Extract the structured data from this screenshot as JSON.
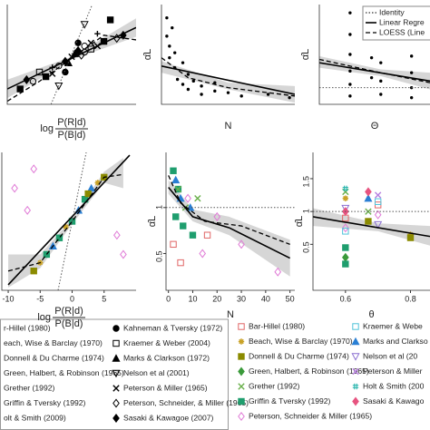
{
  "chart_data": [
    {
      "type": "scatter",
      "xlabel": {
        "prefix": "log",
        "numerator": "P(R|d)",
        "denominator": "P(B|d)"
      },
      "xlim": [
        -10,
        10
      ],
      "ylim": [
        -3,
        3.5
      ],
      "series": [
        {
          "name": "r-Hillel (1980)",
          "color": "#000000",
          "marker": "circle-open",
          "x": [
            -6,
            2
          ],
          "values": [
            -1.5,
            0.8
          ]
        },
        {
          "name": "each, Wise & Barclay (1970)",
          "color": "#000000",
          "marker": "plus",
          "x": [
            -3,
            4
          ],
          "values": [
            -0.6,
            1.6
          ]
        },
        {
          "name": "Donnell & Du Charme (1974)",
          "color": "#000000",
          "marker": "diamond",
          "x": [
            -1,
            1
          ],
          "values": [
            -0.2,
            0.5
          ]
        },
        {
          "name": "Green, Halbert, & Robinson (1965)",
          "color": "#000000",
          "marker": "square",
          "x": [
            -8,
            6
          ],
          "values": [
            -2,
            2.5
          ]
        },
        {
          "name": "Grether (1992)",
          "color": "#000000",
          "marker": "x",
          "x": [
            0,
            3
          ],
          "values": [
            0.1,
            1
          ]
        },
        {
          "name": "Griffin & Tversky (1992)",
          "color": "#000000",
          "marker": "square",
          "x": [
            -4,
            5
          ],
          "values": [
            -1.2,
            1.1
          ]
        },
        {
          "name": "olt & Smith (2009)",
          "color": "#000000",
          "marker": "circle-open",
          "x": [
            -2,
            2
          ],
          "values": [
            -0.5,
            0.4
          ]
        },
        {
          "name": "Kahneman & Tversky (1972)",
          "color": "#000000",
          "marker": "circle",
          "x": [
            1,
            -1
          ],
          "values": [
            1,
            -0.9
          ]
        },
        {
          "name": "Kraemer & Weber (2004)",
          "color": "#000000",
          "marker": "square-open",
          "x": [
            -5,
            3
          ],
          "values": [
            -0.9,
            0.6
          ]
        },
        {
          "name": "Marks & Clarkson (1972)",
          "color": "#000000",
          "marker": "triangle",
          "x": [
            0.5,
            -0.5
          ],
          "values": [
            0.3,
            -0.3
          ]
        },
        {
          "name": "Nelson et al (2001)",
          "color": "#000000",
          "marker": "triangle-down-open",
          "x": [
            2,
            -2
          ],
          "values": [
            2.2,
            -1.8
          ]
        },
        {
          "name": "Peterson & Miller (1965)",
          "color": "#000000",
          "marker": "x",
          "x": [
            -3,
            4
          ],
          "values": [
            -1,
            0.8
          ]
        },
        {
          "name": "Peterson, Schneider, & Miller (1965)",
          "color": "#000000",
          "marker": "diamond-open",
          "x": [
            1.5,
            7
          ],
          "values": [
            0.2,
            1.3
          ]
        },
        {
          "name": "Sasaki & Kawagoe (2007)",
          "color": "#000000",
          "marker": "diamond",
          "x": [
            -7,
            8
          ],
          "values": [
            -1.4,
            1.5
          ]
        }
      ],
      "band": {
        "x": [
          -10,
          0,
          10
        ],
        "lower": [
          -2.6,
          -0.1,
          1.4
        ],
        "upper": [
          -1.4,
          0.1,
          2.6
        ]
      },
      "lines": [
        {
          "style": "dotted",
          "x": [
            -3.2,
            3.2
          ],
          "values": [
            -3,
            3.5
          ]
        },
        {
          "style": "solid",
          "x": [
            -10,
            10
          ],
          "values": [
            -2,
            2
          ]
        },
        {
          "style": "dashed",
          "x": [
            -10,
            -5,
            0,
            5,
            10
          ],
          "values": [
            -2.8,
            -1.5,
            0,
            1.5,
            1.2
          ]
        }
      ]
    },
    {
      "type": "scatter",
      "xlabel": "N",
      "ylabel": "α̂L",
      "xlim": [
        0,
        50
      ],
      "ylim": [
        0,
        6
      ],
      "series": [
        {
          "color": "#000000",
          "marker": "dot",
          "x": [
            2,
            2,
            3,
            3,
            4,
            5,
            5,
            6,
            8,
            8,
            10,
            10,
            12,
            15,
            15,
            20,
            20,
            25,
            30,
            40,
            48
          ],
          "values": [
            5.2,
            4.1,
            3.5,
            2.8,
            4.6,
            2.2,
            3.1,
            1.5,
            2.5,
            1.2,
            1.8,
            0.9,
            1.4,
            1.1,
            0.6,
            0.8,
            1.3,
            0.7,
            0.5,
            0.6,
            0.4
          ]
        }
      ],
      "band": {
        "x": [
          0,
          25,
          50
        ],
        "lower": [
          1.9,
          0.9,
          0.1
        ],
        "upper": [
          2.6,
          1.3,
          1.1
        ]
      },
      "lines": [
        {
          "style": "solid",
          "x": [
            0,
            50
          ],
          "values": [
            2.3,
            0.6
          ]
        },
        {
          "style": "dashed",
          "x": [
            0,
            10,
            25,
            50
          ],
          "values": [
            2.8,
            1.6,
            1,
            0.5
          ]
        }
      ]
    },
    {
      "type": "scatter",
      "xlabel": "Θ",
      "ylabel": "α̂L",
      "xlim": [
        0.5,
        0.86
      ],
      "ylim": [
        0,
        6
      ],
      "series": [
        {
          "color": "#000000",
          "marker": "dot",
          "x": [
            0.6,
            0.6,
            0.6,
            0.6,
            0.6,
            0.6,
            0.67,
            0.67,
            0.7,
            0.7,
            0.7,
            0.7,
            0.8,
            0.8,
            0.8,
            0.8
          ],
          "values": [
            5.5,
            4.2,
            3,
            2,
            1.2,
            0.5,
            2.8,
            1.6,
            4,
            2.5,
            1.4,
            0.6,
            2.9,
            1.9,
            1,
            0.4
          ]
        }
      ],
      "band": {
        "x": [
          0.5,
          0.7,
          0.86
        ],
        "lower": [
          2.2,
          1.7,
          0.9
        ],
        "upper": [
          2.9,
          2.1,
          1.9
        ]
      },
      "lines": [
        {
          "name": "Identity",
          "style": "dotted",
          "x": [
            0.5,
            0.86
          ],
          "values": [
            1,
            1
          ]
        },
        {
          "name": "Linear Regre",
          "style": "solid",
          "x": [
            0.5,
            0.86
          ],
          "values": [
            2.5,
            1.4
          ]
        },
        {
          "name": "LOESS (Line",
          "style": "dashed",
          "x": [
            0.5,
            0.7,
            0.86
          ],
          "values": [
            2.7,
            1.9,
            1.3
          ]
        }
      ]
    },
    {
      "type": "scatter",
      "xlabel": {
        "prefix": "log",
        "numerator": "P(R|d)",
        "denominator": "P(B|d)"
      },
      "xlim": [
        -11,
        10
      ],
      "ylim": [
        -2.5,
        2.5
      ],
      "xticks": [
        {
          "value": -10,
          "label": "-10"
        },
        -5,
        0,
        5
      ],
      "series": [
        {
          "color": "#e07ad6",
          "marker": "diamond-open",
          "x": [
            -9,
            -7,
            -6,
            7,
            8
          ],
          "values": [
            1.2,
            0.4,
            1.9,
            -0.5,
            -1.2
          ]
        },
        {
          "color": "#1f9e6e",
          "marker": "square",
          "x": [
            -4,
            -2,
            0,
            2
          ],
          "values": [
            -1.2,
            -0.6,
            0,
            0.8
          ]
        },
        {
          "color": "#2a7fd4",
          "marker": "triangle",
          "x": [
            -3,
            1,
            3
          ],
          "values": [
            -0.9,
            0.4,
            1.2
          ]
        },
        {
          "color": "#c9a227",
          "marker": "star",
          "x": [
            -5,
            -1,
            4
          ],
          "values": [
            -1.5,
            -0.2,
            1.4
          ]
        },
        {
          "color": "#8b8b00",
          "marker": "square",
          "x": [
            -6,
            2.5,
            5
          ],
          "values": [
            -1.8,
            1,
            1.6
          ]
        }
      ],
      "band": {
        "x": [
          -10,
          -5,
          0,
          5,
          8
        ],
        "lower": [
          -2.4,
          -1.7,
          -0.1,
          1.4,
          1.2
        ],
        "upper": [
          -1.2,
          -1.2,
          0.1,
          1.8,
          2.3
        ]
      },
      "lines": [
        {
          "style": "dotted",
          "x": [
            -2.2,
            2.2
          ],
          "values": [
            -2.5,
            2.5
          ]
        },
        {
          "style": "solid",
          "x": [
            -10,
            9
          ],
          "values": [
            -2.3,
            2.4
          ]
        },
        {
          "style": "dashed",
          "x": [
            -10,
            -5,
            0,
            5,
            8
          ],
          "values": [
            -1.8,
            -1.5,
            0,
            1.6,
            1.7
          ]
        }
      ]
    },
    {
      "type": "scatter",
      "xlabel": "N",
      "ylabel": "α̂L",
      "xlim": [
        -1,
        52
      ],
      "ylim": [
        0.1,
        1.6
      ],
      "xticks": [
        0,
        10,
        20,
        30,
        40,
        50
      ],
      "yticks": [
        0.5,
        1.0
      ],
      "series": [
        {
          "color": "#1f9e6e",
          "marker": "square",
          "x": [
            2,
            3,
            4,
            6,
            10
          ],
          "values": [
            1.4,
            0.9,
            1.2,
            0.8,
            0.7
          ]
        },
        {
          "color": "#e07ad6",
          "marker": "diamond-open",
          "x": [
            8,
            14,
            20,
            30,
            45
          ],
          "values": [
            1.1,
            0.5,
            0.9,
            0.6,
            0.3
          ]
        },
        {
          "color": "#2a7fd4",
          "marker": "triangle",
          "x": [
            3,
            5,
            9
          ],
          "values": [
            1.3,
            1.1,
            1
          ]
        },
        {
          "color": "#6ab04c",
          "marker": "x",
          "x": [
            4,
            7,
            12
          ],
          "values": [
            1.2,
            1.0,
            1.1
          ]
        },
        {
          "color": "#e06666",
          "marker": "square-open",
          "x": [
            2,
            5,
            16
          ],
          "values": [
            0.6,
            0.4,
            0.7
          ]
        }
      ],
      "band": {
        "x": [
          0,
          10,
          25,
          50
        ],
        "lower": [
          1.15,
          0.85,
          0.7,
          0.25
        ],
        "upper": [
          1.3,
          0.98,
          0.9,
          0.65
        ]
      },
      "lines": [
        {
          "style": "dotted",
          "x": [
            -1,
            52
          ],
          "values": [
            1,
            1
          ]
        },
        {
          "style": "solid",
          "x": [
            0,
            10,
            25,
            50
          ],
          "values": [
            1.22,
            0.9,
            0.78,
            0.45
          ]
        },
        {
          "style": "dashed",
          "x": [
            0,
            5,
            15,
            30,
            50
          ],
          "values": [
            1.35,
            1.05,
            0.85,
            0.8,
            0.6
          ]
        }
      ]
    },
    {
      "type": "scatter",
      "xlabel": "θ",
      "ylabel": "α̂L",
      "xlim": [
        0.5,
        0.86
      ],
      "ylim": [
        -0.2,
        1.9
      ],
      "xticks": [
        0.6,
        0.8
      ],
      "yticks": [
        0.5,
        1.0,
        1.5
      ],
      "series": [
        {
          "name": "Bar-Hillel (1980)",
          "color": "#e06666",
          "marker": "square-open",
          "x": [
            0.6,
            0.7
          ],
          "values": [
            0.9,
            1.1
          ]
        },
        {
          "name": "Beach, Wise & Barclay (1970)",
          "color": "#c9a227",
          "marker": "star",
          "x": [
            0.6,
            0.8
          ],
          "values": [
            1.2,
            0.65
          ]
        },
        {
          "name": "Donnell & Du Charme (1974)",
          "color": "#8b8b00",
          "marker": "square",
          "x": [
            0.67,
            0.8
          ],
          "values": [
            0.85,
            0.6
          ]
        },
        {
          "name": "Green, Halbert, & Robinson (1965)",
          "color": "#3a9a3a",
          "marker": "diamond",
          "x": [
            0.6
          ],
          "values": [
            0.3
          ]
        },
        {
          "name": "Grether (1992)",
          "color": "#6ab04c",
          "marker": "x",
          "x": [
            0.6,
            0.67
          ],
          "values": [
            1.3,
            1.0
          ]
        },
        {
          "name": "Griffin & Tversky (1992)",
          "color": "#1f9e6e",
          "marker": "square",
          "x": [
            0.6,
            0.6
          ],
          "values": [
            0.2,
            0.45
          ]
        },
        {
          "name": "Peterson, Schneider & Miller (1965)",
          "color": "#e07ad6",
          "marker": "diamond-open",
          "x": [
            0.6,
            0.7
          ],
          "values": [
            0.75,
            0.95
          ]
        },
        {
          "name": "Kraemer & Webe",
          "color": "#4fc3d9",
          "marker": "square-open",
          "x": [
            0.6,
            0.7
          ],
          "values": [
            0.7,
            1.15
          ]
        },
        {
          "name": "Marks and Clarkso",
          "color": "#2a7fd4",
          "marker": "triangle",
          "x": [
            0.67
          ],
          "values": [
            1.2
          ]
        },
        {
          "name": "Nelson et al (20",
          "color": "#8a6fd1",
          "marker": "triangle-down-open",
          "x": [
            0.6,
            0.7
          ],
          "values": [
            1.05,
            0.8
          ]
        },
        {
          "name": "Peterson & Miller",
          "color": "#b77fe0",
          "marker": "x",
          "x": [
            0.7
          ],
          "values": [
            1.25
          ]
        },
        {
          "name": "Holt & Smith (200",
          "color": "#20b2aa",
          "marker": "hash",
          "x": [
            0.6
          ],
          "values": [
            1.35
          ]
        },
        {
          "name": "Sasaki & Kawago",
          "color": "#e75480",
          "marker": "diamond",
          "x": [
            0.6,
            0.67
          ],
          "values": [
            1.0,
            1.3
          ]
        }
      ],
      "band": {
        "x": [
          0.5,
          0.7,
          0.86
        ],
        "lower": [
          0.78,
          0.7,
          0.48
        ],
        "upper": [
          1.05,
          0.82,
          0.78
        ]
      },
      "lines": [
        {
          "style": "dotted",
          "x": [
            0.5,
            0.86
          ],
          "values": [
            1,
            1
          ]
        },
        {
          "style": "solid",
          "x": [
            0.5,
            0.86
          ],
          "values": [
            0.92,
            0.62
          ]
        }
      ]
    }
  ]
}
